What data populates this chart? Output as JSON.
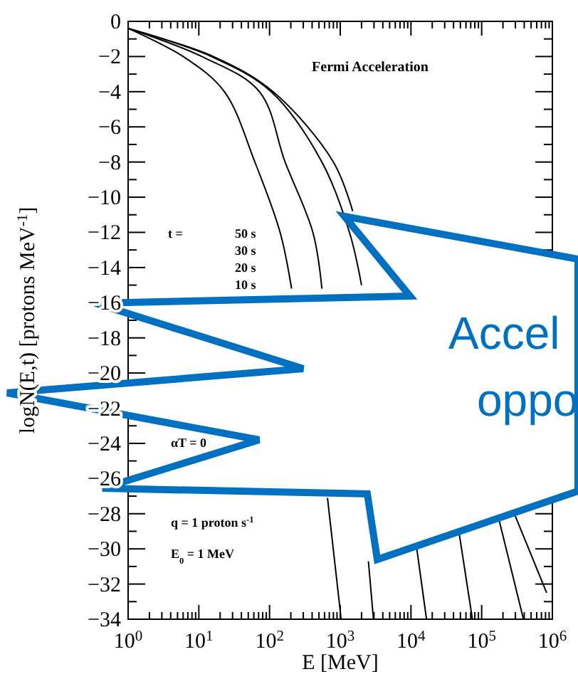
{
  "chart_data": {
    "type": "line",
    "xlabel": "E [MeV]",
    "ylabel": "logN(E,t) [protons MeV$^{-1}$]",
    "log": "x",
    "grid": false,
    "xlim": [
      1,
      1000000
    ],
    "ylim": [
      -34,
      0
    ],
    "xticks": [
      {
        "value": 1,
        "label": "10$^{0}$"
      },
      {
        "value": 2,
        "label": null
      },
      {
        "value": 3,
        "label": null
      },
      {
        "value": 4,
        "label": null
      },
      {
        "value": 5,
        "label": null
      },
      {
        "value": 6,
        "label": null
      },
      {
        "value": 7,
        "label": null
      },
      {
        "value": 8,
        "label": null
      },
      {
        "value": 9,
        "label": null
      },
      {
        "value": 10,
        "label": "10$^{1}$"
      },
      {
        "value": 20,
        "label": null
      },
      {
        "value": 30,
        "label": null
      },
      {
        "value": 40,
        "label": null
      },
      {
        "value": 50,
        "label": null
      },
      {
        "value": 60,
        "label": null
      },
      {
        "value": 70,
        "label": null
      },
      {
        "value": 80,
        "label": null
      },
      {
        "value": 90,
        "label": null
      },
      {
        "value": 100,
        "label": "10$^{2}$"
      },
      {
        "value": 200,
        "label": null
      },
      {
        "value": 300,
        "label": null
      },
      {
        "value": 400,
        "label": null
      },
      {
        "value": 500,
        "label": null
      },
      {
        "value": 600,
        "label": null
      },
      {
        "value": 700,
        "label": null
      },
      {
        "value": 800,
        "label": null
      },
      {
        "value": 900,
        "label": null
      },
      {
        "value": 1000,
        "label": "10$^{3}$"
      },
      {
        "value": 2000,
        "label": null
      },
      {
        "value": 3000,
        "label": null
      },
      {
        "value": 4000,
        "label": null
      },
      {
        "value": 5000,
        "label": null
      },
      {
        "value": 6000,
        "label": null
      },
      {
        "value": 7000,
        "label": null
      },
      {
        "value": 8000,
        "label": null
      },
      {
        "value": 9000,
        "label": null
      },
      {
        "value": 10000,
        "label": "10$^{4}$"
      },
      {
        "value": 20000,
        "label": null
      },
      {
        "value": 30000,
        "label": null
      },
      {
        "value": 40000,
        "label": null
      },
      {
        "value": 50000,
        "label": null
      },
      {
        "value": 60000,
        "label": null
      },
      {
        "value": 70000,
        "label": null
      },
      {
        "value": 80000,
        "label": null
      },
      {
        "value": 90000,
        "label": null
      },
      {
        "value": 100000,
        "label": "10$^{5}$"
      },
      {
        "value": 200000,
        "label": null
      },
      {
        "value": 300000,
        "label": null
      },
      {
        "value": 400000,
        "label": null
      },
      {
        "value": 500000,
        "label": null
      },
      {
        "value": 600000,
        "label": null
      },
      {
        "value": 700000,
        "label": null
      },
      {
        "value": 800000,
        "label": null
      },
      {
        "value": 900000,
        "label": null
      },
      {
        "value": 1000000,
        "label": "10$^{6}$"
      }
    ],
    "yticks": [
      0,
      {
        "value": -1,
        "label": null
      },
      -2,
      {
        "value": -3,
        "label": null
      },
      -4,
      {
        "value": -5,
        "label": null
      },
      -6,
      {
        "value": -7,
        "label": null
      },
      -8,
      {
        "value": -9,
        "label": null
      },
      -10,
      {
        "value": -11,
        "label": null
      },
      -12,
      {
        "value": -13,
        "label": null
      },
      -14,
      {
        "value": -15,
        "label": null
      },
      -16,
      {
        "value": -17,
        "label": null
      },
      -18,
      {
        "value": -19,
        "label": null
      },
      -20,
      {
        "value": -21,
        "label": null
      },
      -22,
      {
        "value": -23,
        "label": null
      },
      -24,
      {
        "value": -25,
        "label": null
      },
      -26,
      {
        "value": -27,
        "label": null
      },
      -28,
      {
        "value": -29,
        "label": null
      },
      -30,
      {
        "value": -31,
        "label": null
      },
      -32,
      {
        "value": -33,
        "label": null
      },
      -34
    ],
    "series": [
      {
        "color": "#000000",
        "x": [
          1,
          6,
          23,
          62,
          141,
          205
        ],
        "values": [
          -0.4,
          -2,
          -4,
          -8,
          -12,
          -15.2
        ]
      },
      {
        "color": "#000000",
        "x": [
          1,
          11,
          72,
          166,
          410,
          550
        ],
        "values": [
          -0.4,
          -2,
          -4,
          -8,
          -12,
          -15.2
        ]
      },
      {
        "color": "#000000",
        "x": [
          1,
          15,
          105,
          550,
          1350,
          2000
        ],
        "values": [
          -0.4,
          -2,
          -4,
          -8,
          -12,
          -15
        ]
      },
      {
        "color": "#000000",
        "x": [
          1,
          16,
          112,
          800,
          1500
        ],
        "values": [
          -0.4,
          -2,
          -4,
          -8,
          -10.8
        ]
      },
      {
        "color": "#000000",
        "x": [
          660,
          1030
        ],
        "values": [
          -27.1,
          -34
        ]
      },
      {
        "color": "#000000",
        "x": [
          2500,
          2950
        ],
        "values": [
          -30.7,
          -34
        ]
      },
      {
        "color": "#000000",
        "x": [
          12000,
          16600
        ],
        "values": [
          -29.9,
          -34
        ]
      },
      {
        "color": "#000000",
        "x": [
          48000,
          74000
        ],
        "values": [
          -29.1,
          -34
        ]
      },
      {
        "color": "#000000",
        "x": [
          175000,
          390000
        ],
        "values": [
          -28.3,
          -34
        ]
      },
      {
        "color": "#000000",
        "x": [
          290000,
          830000
        ],
        "values": [
          -28,
          -32.5
        ]
      }
    ],
    "annotations": [
      "Fermi Acceleration",
      "t  =",
      "50 s",
      "30 s",
      "20 s",
      "10 s",
      "αT = 0",
      "q = 1 proton s$^{-1}$",
      "E$_{0}$ = 1 MeV",
      "Accel",
      "oppo"
    ]
  }
}
